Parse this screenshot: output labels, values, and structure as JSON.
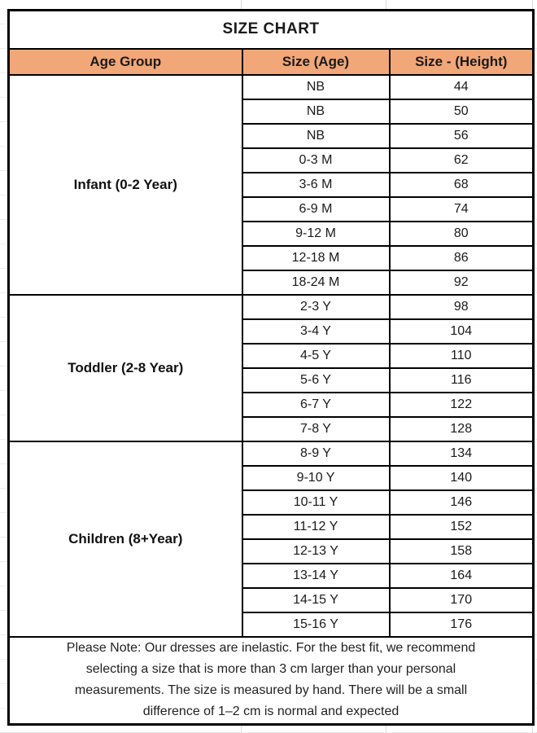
{
  "chart_data": {
    "type": "table",
    "title": "SIZE CHART",
    "columns": [
      "Age Group",
      "Size (Age)",
      "Size - (Height)"
    ],
    "groups": [
      {
        "age_group": "Infant (0-2 Year)",
        "rows": [
          [
            "NB",
            "44"
          ],
          [
            "NB",
            "50"
          ],
          [
            "NB",
            "56"
          ],
          [
            "0-3 M",
            "62"
          ],
          [
            "3-6 M",
            "68"
          ],
          [
            "6-9 M",
            "74"
          ],
          [
            "9-12 M",
            "80"
          ],
          [
            "12-18 M",
            "86"
          ],
          [
            "18-24 M",
            "92"
          ]
        ]
      },
      {
        "age_group": "Toddler (2-8 Year)",
        "rows": [
          [
            "2-3 Y",
            "98"
          ],
          [
            "3-4 Y",
            "104"
          ],
          [
            "4-5 Y",
            "110"
          ],
          [
            "5-6 Y",
            "116"
          ],
          [
            "6-7 Y",
            "122"
          ],
          [
            "7-8 Y",
            "128"
          ]
        ]
      },
      {
        "age_group": "Children (8+Year)",
        "rows": [
          [
            "8-9 Y",
            "134"
          ],
          [
            "9-10 Y",
            "140"
          ],
          [
            "10-11 Y",
            "146"
          ],
          [
            "11-12 Y",
            "152"
          ],
          [
            "12-13 Y",
            "158"
          ],
          [
            "13-14 Y",
            "164"
          ],
          [
            "14-15 Y",
            "170"
          ],
          [
            "15-16 Y",
            "176"
          ]
        ]
      }
    ],
    "note_lines": [
      "Please Note: Our dresses are inelastic. For the best fit, we recommend",
      "selecting a size that is more than 3 cm larger than your personal",
      "measurements. The size is measured by hand. There will be a small",
      "difference of 1–2 cm is normal and expected"
    ]
  },
  "colors": {
    "header_bg": "#F2A778",
    "border": "#000000",
    "text": "#1A1A1A"
  }
}
